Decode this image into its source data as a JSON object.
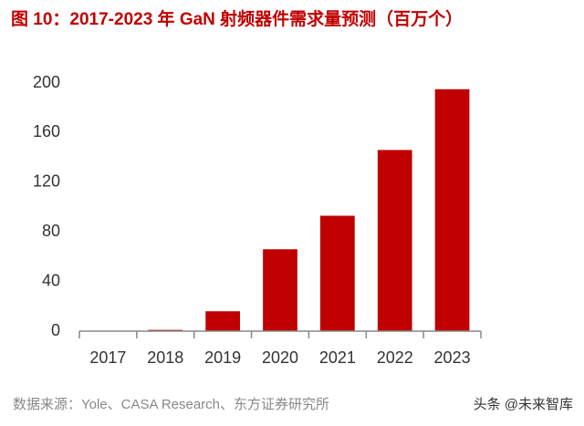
{
  "chart_data": {
    "type": "bar",
    "title": "图 10：2017-2023 年 GaN 射频器件需求量预测（百万个）",
    "categories": [
      "2017",
      "2018",
      "2019",
      "2020",
      "2021",
      "2022",
      "2023"
    ],
    "values": [
      0,
      1,
      16,
      66,
      93,
      146,
      195
    ],
    "color": "#c00000",
    "ylim": [
      0,
      200
    ],
    "yticks": [
      0,
      40,
      80,
      120,
      160,
      200
    ],
    "grid": false,
    "source": "数据来源：Yole、CASA Research、东方证券研究所",
    "watermark": "头条 @未来智库"
  }
}
